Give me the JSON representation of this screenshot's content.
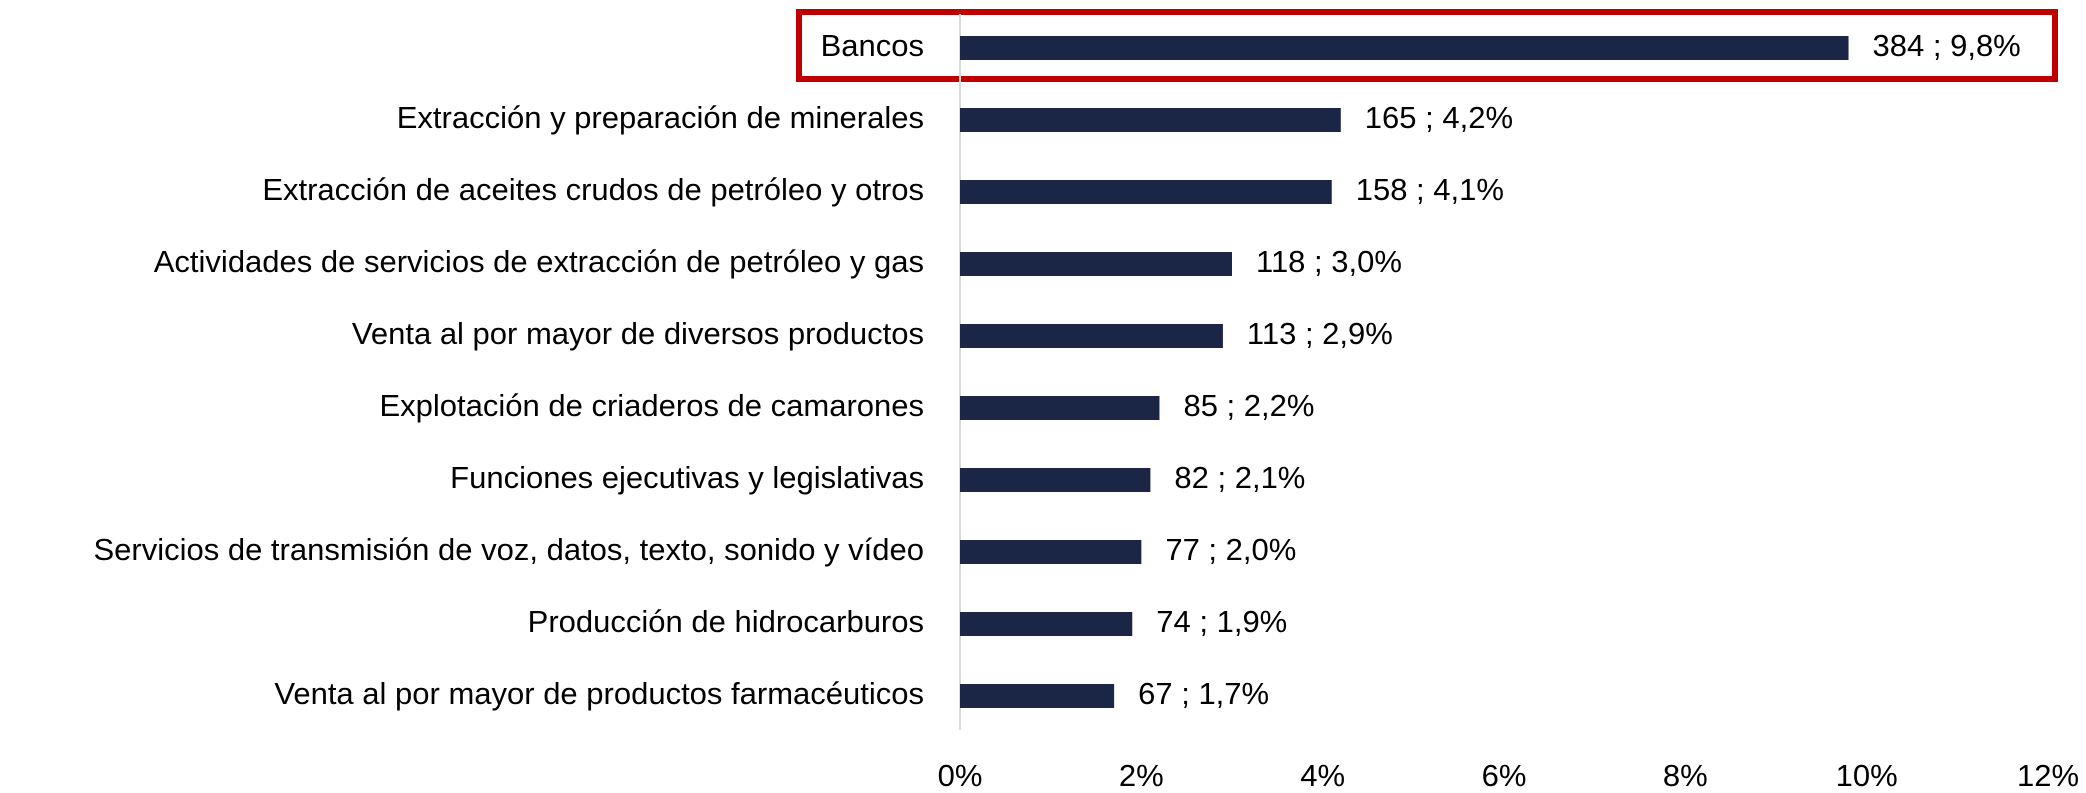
{
  "chart_data": {
    "type": "bar",
    "orientation": "horizontal",
    "categories": [
      "Bancos",
      "Extracción y preparación de minerales",
      "Extracción de aceites crudos de petróleo y otros",
      "Actividades de servicios de extracción de petróleo y gas",
      "Venta al por mayor de diversos productos",
      "Explotación de criaderos de camarones",
      "Funciones ejecutivas y legislativas",
      "Servicios de transmisión de voz, datos, texto, sonido y vídeo",
      "Producción de hidrocarburos",
      "Venta al por mayor de productos farmacéuticos"
    ],
    "values": [
      9.8,
      4.2,
      4.1,
      3.0,
      2.9,
      2.2,
      2.1,
      2.0,
      1.9,
      1.7
    ],
    "value_labels": [
      "384 ; 9,8%",
      "165 ; 4,2%",
      "158 ; 4,1%",
      "118 ; 3,0%",
      "113 ; 2,9%",
      "85 ; 2,2%",
      "82 ; 2,1%",
      "77 ; 2,0%",
      "74 ; 1,9%",
      "67 ; 1,7%"
    ],
    "color": "#1b2545",
    "xlim": [
      0,
      12
    ],
    "xticks": [
      {
        "value": 0,
        "label": "0%"
      },
      {
        "value": 2,
        "label": "2%"
      },
      {
        "value": 4,
        "label": "4%"
      },
      {
        "value": 6,
        "label": "6%"
      },
      {
        "value": 8,
        "label": "8%"
      },
      {
        "value": 10,
        "label": "10%"
      },
      {
        "value": 12,
        "label": "12%"
      }
    ],
    "grid": false
  }
}
